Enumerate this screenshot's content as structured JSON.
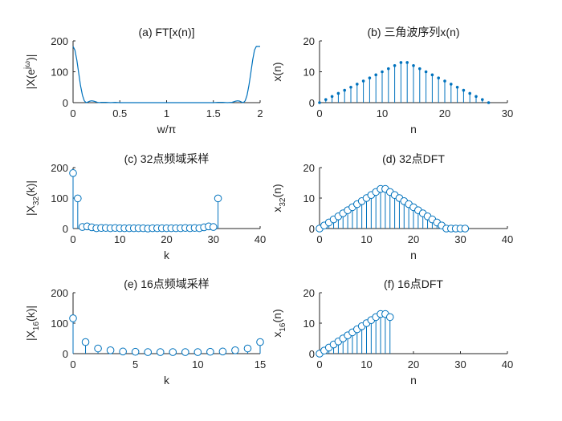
{
  "figure": {
    "background": "#ffffff",
    "accent": "#0072BD"
  },
  "chart_data": [
    {
      "id": "a",
      "type": "line",
      "title": "(a) FT[x(n)]",
      "xlabel": "w/π",
      "ylabel": "|X(e^jω)|",
      "xlim": [
        0,
        2
      ],
      "ylim": [
        0,
        200
      ],
      "xticks": [
        0,
        0.5,
        1,
        1.5,
        2
      ],
      "xtick_labels": [
        "0",
        "0.5",
        "1",
        "1.5",
        "2"
      ],
      "yticks": [
        0,
        100,
        200
      ],
      "ytick_labels": [
        "0",
        "100",
        "200"
      ],
      "x": [
        0,
        0.02,
        0.04,
        0.06,
        0.08,
        0.1,
        0.12,
        0.14,
        0.16,
        0.18,
        0.2,
        0.22,
        0.24,
        0.26,
        0.28,
        0.3,
        0.35,
        0.4,
        0.45,
        0.5,
        0.6,
        0.7,
        0.8,
        0.9,
        1.0,
        1.1,
        1.2,
        1.3,
        1.4,
        1.5,
        1.55,
        1.6,
        1.65,
        1.7,
        1.72,
        1.74,
        1.76,
        1.78,
        1.8,
        1.82,
        1.84,
        1.86,
        1.88,
        1.9,
        1.92,
        1.94,
        1.96,
        1.98,
        2.0
      ],
      "y": [
        182,
        170,
        138,
        96,
        55,
        24,
        6,
        0,
        2,
        5,
        6,
        5,
        3,
        1,
        0,
        1,
        1,
        0,
        1,
        0,
        0,
        0,
        0,
        0,
        0,
        0,
        0,
        0,
        0,
        0,
        1,
        1,
        0,
        1,
        3,
        5,
        6,
        5,
        2,
        0,
        6,
        24,
        55,
        96,
        138,
        170,
        182,
        182,
        182
      ]
    },
    {
      "id": "b",
      "type": "stem",
      "title": "(b) 三角波序列x(n)",
      "xlabel": "n",
      "ylabel": "x(n)",
      "xlim": [
        0,
        30
      ],
      "ylim": [
        0,
        20
      ],
      "xticks": [
        0,
        10,
        20,
        30
      ],
      "xtick_labels": [
        "0",
        "10",
        "20",
        "30"
      ],
      "yticks": [
        0,
        10,
        20
      ],
      "ytick_labels": [
        "0",
        "10",
        "20"
      ],
      "marker": "dot",
      "x": [
        0,
        1,
        2,
        3,
        4,
        5,
        6,
        7,
        8,
        9,
        10,
        11,
        12,
        13,
        14,
        15,
        16,
        17,
        18,
        19,
        20,
        21,
        22,
        23,
        24,
        25,
        26,
        27
      ],
      "y": [
        0,
        1,
        2,
        3,
        4,
        5,
        6,
        7,
        8,
        9,
        10,
        11,
        12,
        13,
        13,
        12,
        11,
        10,
        9,
        8,
        7,
        6,
        5,
        4,
        3,
        2,
        1,
        0
      ]
    },
    {
      "id": "c",
      "type": "stem",
      "title": "(c) 32点频域采样",
      "xlabel": "k",
      "ylabel": "|X32(k)|",
      "ylabel_main": "|X",
      "ylabel_sub": "32",
      "ylabel_end": "(k)|",
      "xlim": [
        0,
        40
      ],
      "ylim": [
        0,
        200
      ],
      "xticks": [
        0,
        10,
        20,
        30,
        40
      ],
      "xtick_labels": [
        "0",
        "10",
        "20",
        "30",
        "40"
      ],
      "yticks": [
        0,
        100,
        200
      ],
      "ytick_labels": [
        "0",
        "100",
        "200"
      ],
      "marker": "circle",
      "x": [
        0,
        1,
        2,
        3,
        4,
        5,
        6,
        7,
        8,
        9,
        10,
        11,
        12,
        13,
        14,
        15,
        16,
        17,
        18,
        19,
        20,
        21,
        22,
        23,
        24,
        25,
        26,
        27,
        28,
        29,
        30,
        31
      ],
      "y": [
        182,
        99,
        5,
        7,
        4,
        1,
        2,
        2,
        1,
        2,
        1,
        1,
        1,
        1,
        1,
        1,
        0,
        1,
        1,
        1,
        1,
        1,
        1,
        1,
        2,
        1,
        2,
        1,
        4,
        7,
        5,
        99
      ]
    },
    {
      "id": "d",
      "type": "stem",
      "title": "(d) 32点DFT",
      "xlabel": "n",
      "ylabel": "x32(n)",
      "ylabel_main": "x",
      "ylabel_sub": "32",
      "ylabel_end": "(n)",
      "xlim": [
        0,
        40
      ],
      "ylim": [
        0,
        20
      ],
      "xticks": [
        0,
        10,
        20,
        30,
        40
      ],
      "xtick_labels": [
        "0",
        "10",
        "20",
        "30",
        "40"
      ],
      "yticks": [
        0,
        10,
        20
      ],
      "ytick_labels": [
        "0",
        "10",
        "20"
      ],
      "marker": "circle",
      "x": [
        0,
        1,
        2,
        3,
        4,
        5,
        6,
        7,
        8,
        9,
        10,
        11,
        12,
        13,
        14,
        15,
        16,
        17,
        18,
        19,
        20,
        21,
        22,
        23,
        24,
        25,
        26,
        27,
        28,
        29,
        30,
        31
      ],
      "y": [
        0,
        1,
        2,
        3,
        4,
        5,
        6,
        7,
        8,
        9,
        10,
        11,
        12,
        13,
        13,
        12,
        11,
        10,
        9,
        8,
        7,
        6,
        5,
        4,
        3,
        2,
        1,
        0,
        0,
        0,
        0,
        0
      ]
    },
    {
      "id": "e",
      "type": "stem",
      "title": "(e) 16点频域采样",
      "xlabel": "k",
      "ylabel": "|X16(k)|",
      "ylabel_main": "|X",
      "ylabel_sub": "16",
      "ylabel_end": "(k)|",
      "xlim": [
        0,
        15
      ],
      "ylim": [
        0,
        200
      ],
      "xticks": [
        0,
        5,
        10,
        15
      ],
      "xtick_labels": [
        "0",
        "5",
        "10",
        "15"
      ],
      "yticks": [
        0,
        100,
        200
      ],
      "ytick_labels": [
        "0",
        "100",
        "200"
      ],
      "marker": "circle",
      "x": [
        0,
        1,
        2,
        3,
        4,
        5,
        6,
        7,
        8,
        9,
        10,
        11,
        12,
        13,
        14,
        15
      ],
      "y": [
        116,
        38,
        17,
        11,
        7,
        6,
        5,
        5,
        5,
        5,
        5,
        6,
        7,
        11,
        17,
        38
      ]
    },
    {
      "id": "f",
      "type": "stem",
      "title": "(f) 16点DFT",
      "xlabel": "n",
      "ylabel": "x16(n)",
      "ylabel_main": "x",
      "ylabel_sub": "16",
      "ylabel_end": "(n)",
      "xlim": [
        0,
        40
      ],
      "ylim": [
        0,
        20
      ],
      "xticks": [
        0,
        10,
        20,
        30,
        40
      ],
      "xtick_labels": [
        "0",
        "10",
        "20",
        "30",
        "40"
      ],
      "yticks": [
        0,
        10,
        20
      ],
      "ytick_labels": [
        "0",
        "10",
        "20"
      ],
      "marker": "circle",
      "x": [
        0,
        1,
        2,
        3,
        4,
        5,
        6,
        7,
        8,
        9,
        10,
        11,
        12,
        13,
        14,
        15
      ],
      "y": [
        0,
        1,
        2,
        3,
        4,
        5,
        6,
        7,
        8,
        9,
        10,
        11,
        12,
        13,
        13,
        12
      ]
    }
  ]
}
